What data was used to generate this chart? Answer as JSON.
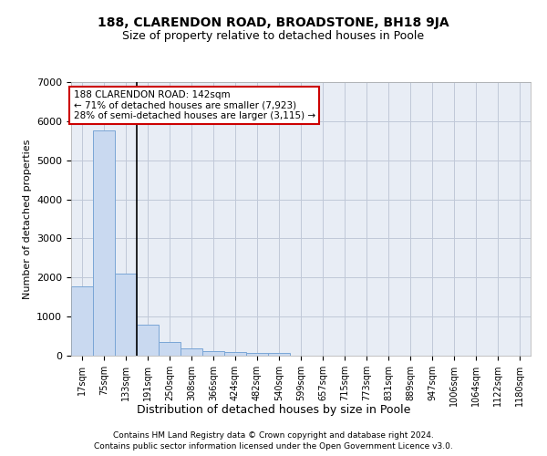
{
  "title1": "188, CLARENDON ROAD, BROADSTONE, BH18 9JA",
  "title2": "Size of property relative to detached houses in Poole",
  "xlabel": "Distribution of detached houses by size in Poole",
  "ylabel": "Number of detached properties",
  "bin_labels": [
    "17sqm",
    "75sqm",
    "133sqm",
    "191sqm",
    "250sqm",
    "308sqm",
    "366sqm",
    "424sqm",
    "482sqm",
    "540sqm",
    "599sqm",
    "657sqm",
    "715sqm",
    "773sqm",
    "831sqm",
    "889sqm",
    "947sqm",
    "1006sqm",
    "1064sqm",
    "1122sqm",
    "1180sqm"
  ],
  "bar_values": [
    1780,
    5760,
    2090,
    800,
    340,
    185,
    120,
    100,
    80,
    65,
    0,
    0,
    0,
    0,
    0,
    0,
    0,
    0,
    0,
    0,
    0
  ],
  "bar_color": "#c9d9f0",
  "bar_edge_color": "#7aa6d6",
  "annotation_text": "188 CLARENDON ROAD: 142sqm\n← 71% of detached houses are smaller (7,923)\n28% of semi-detached houses are larger (3,115) →",
  "annotation_box_color": "#ffffff",
  "annotation_box_edge_color": "#cc0000",
  "vline_color": "#000000",
  "grid_color": "#c0c8d8",
  "bg_color": "#e8edf5",
  "footer1": "Contains HM Land Registry data © Crown copyright and database right 2024.",
  "footer2": "Contains public sector information licensed under the Open Government Licence v3.0.",
  "ylim": [
    0,
    7000
  ],
  "yticks": [
    0,
    1000,
    2000,
    3000,
    4000,
    5000,
    6000,
    7000
  ]
}
